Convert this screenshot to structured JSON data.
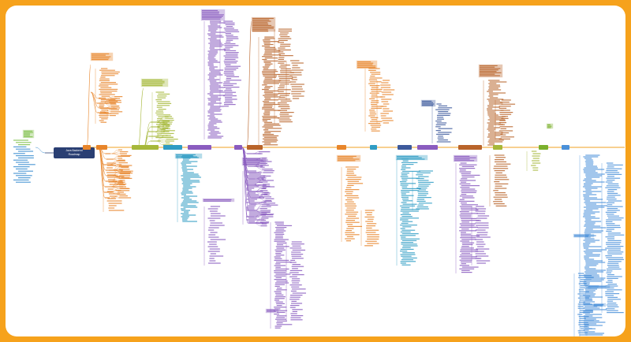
{
  "central_topic": {
    "label": "Java Backend\nRoadmap"
  },
  "left_topic": {
    "label": ""
  },
  "branch_colors": {
    "orange": "#e8852a",
    "olive": "#a6b83a",
    "teal": "#2f9cc4",
    "purple": "#8a5cbf",
    "brown": "#b9642a",
    "navy": "#3d5a9c",
    "green": "#7ab02c",
    "blue": "#4a90d9"
  },
  "topics": [
    {
      "label": "",
      "color": "orange"
    },
    {
      "label": "",
      "color": "orange"
    },
    {
      "label": "",
      "color": "olive"
    },
    {
      "label": "",
      "color": "teal"
    },
    {
      "label": "",
      "color": "purple"
    },
    {
      "label": "",
      "color": "purple"
    },
    {
      "label": "",
      "color": "brown"
    },
    {
      "label": "",
      "color": "orange"
    },
    {
      "label": "",
      "color": "teal"
    },
    {
      "label": "",
      "color": "navy"
    },
    {
      "label": "",
      "color": "purple"
    },
    {
      "label": "",
      "color": "brown"
    },
    {
      "label": "",
      "color": "olive"
    },
    {
      "label": "",
      "color": "green"
    },
    {
      "label": "",
      "color": "blue"
    }
  ]
}
